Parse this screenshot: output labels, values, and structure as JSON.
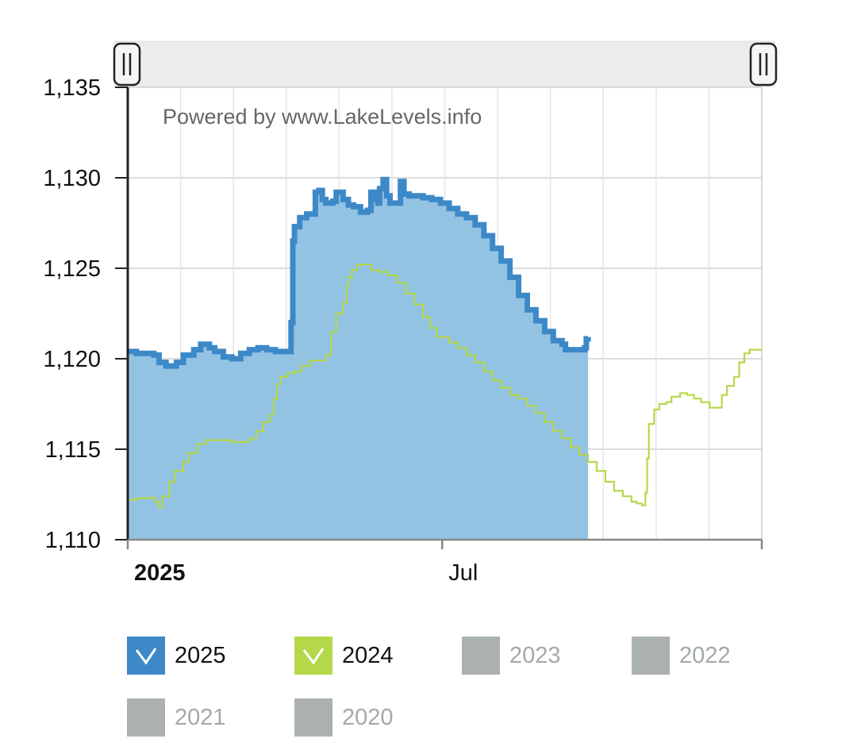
{
  "watermark": "Powered by www.LakeLevels.info",
  "colors": {
    "series_2025_line": "#3d89c8",
    "series_2025_fill": "#93c3e3",
    "series_2024_line": "#b5d84a",
    "inactive": "#abb1b0",
    "inactive_text": "#a3a9a9",
    "grid": "#dcdcdc",
    "axis": "#222222",
    "scrollbar_track": "#ececec"
  },
  "chart_data": {
    "type": "area",
    "x_domain_days": [
      0,
      365
    ],
    "x_ticks": [
      {
        "day": 0,
        "label": "2025",
        "bold": true
      },
      {
        "day": 181,
        "label": "Jul",
        "bold": false
      }
    ],
    "ylim": [
      1110,
      1135
    ],
    "y_ticks": [
      1110,
      1115,
      1120,
      1125,
      1130,
      1135
    ],
    "y_tick_labels": [
      "1,110",
      "1,115",
      "1,120",
      "1,125",
      "1,130",
      "1,135"
    ],
    "grid": true,
    "series": [
      {
        "name": "2025",
        "style": "area",
        "points": [
          [
            0,
            1120.4
          ],
          [
            5,
            1120.3
          ],
          [
            15,
            1120.2
          ],
          [
            18,
            1119.8
          ],
          [
            22,
            1119.6
          ],
          [
            28,
            1119.8
          ],
          [
            32,
            1120.2
          ],
          [
            38,
            1120.5
          ],
          [
            42,
            1120.8
          ],
          [
            47,
            1120.6
          ],
          [
            50,
            1120.4
          ],
          [
            55,
            1120.1
          ],
          [
            60,
            1120.0
          ],
          [
            65,
            1120.3
          ],
          [
            70,
            1120.5
          ],
          [
            75,
            1120.6
          ],
          [
            80,
            1120.5
          ],
          [
            85,
            1120.4
          ],
          [
            93,
            1120.4
          ],
          [
            94,
            1122.0
          ],
          [
            95,
            1126.5
          ],
          [
            96,
            1127.3
          ],
          [
            99,
            1127.8
          ],
          [
            103,
            1128.0
          ],
          [
            107,
            1128.0
          ],
          [
            108,
            1129.2
          ],
          [
            110,
            1129.3
          ],
          [
            112,
            1128.8
          ],
          [
            114,
            1128.6
          ],
          [
            118,
            1128.7
          ],
          [
            120,
            1129.2
          ],
          [
            124,
            1128.8
          ],
          [
            127,
            1128.5
          ],
          [
            130,
            1128.4
          ],
          [
            134,
            1128.1
          ],
          [
            138,
            1128.2
          ],
          [
            140,
            1129.2
          ],
          [
            142,
            1128.8
          ],
          [
            144,
            1128.6
          ],
          [
            145,
            1129.4
          ],
          [
            147,
            1129.9
          ],
          [
            149,
            1129.0
          ],
          [
            151,
            1128.6
          ],
          [
            156,
            1128.6
          ],
          [
            157,
            1129.8
          ],
          [
            159,
            1129.1
          ],
          [
            162,
            1129.0
          ],
          [
            166,
            1129.0
          ],
          [
            170,
            1128.9
          ],
          [
            175,
            1128.8
          ],
          [
            180,
            1128.6
          ],
          [
            185,
            1128.3
          ],
          [
            190,
            1128.0
          ],
          [
            195,
            1127.8
          ],
          [
            200,
            1127.4
          ],
          [
            205,
            1126.8
          ],
          [
            210,
            1126.1
          ],
          [
            215,
            1125.4
          ],
          [
            220,
            1124.5
          ],
          [
            225,
            1123.5
          ],
          [
            230,
            1122.7
          ],
          [
            235,
            1122.1
          ],
          [
            240,
            1121.5
          ],
          [
            245,
            1121.0
          ],
          [
            250,
            1120.8
          ],
          [
            252,
            1120.5
          ],
          [
            263,
            1120.6
          ],
          [
            264,
            1121.1
          ],
          [
            265,
            1121.2
          ]
        ]
      },
      {
        "name": "2024",
        "style": "line",
        "points": [
          [
            0,
            1112.2
          ],
          [
            5,
            1112.3
          ],
          [
            12,
            1112.3
          ],
          [
            16,
            1112.1
          ],
          [
            18,
            1111.8
          ],
          [
            20,
            1112.4
          ],
          [
            24,
            1113.2
          ],
          [
            27,
            1113.8
          ],
          [
            32,
            1114.3
          ],
          [
            35,
            1114.8
          ],
          [
            40,
            1115.3
          ],
          [
            45,
            1115.5
          ],
          [
            55,
            1115.5
          ],
          [
            60,
            1115.4
          ],
          [
            66,
            1115.4
          ],
          [
            70,
            1115.6
          ],
          [
            74,
            1116.0
          ],
          [
            78,
            1116.5
          ],
          [
            82,
            1116.9
          ],
          [
            84,
            1117.8
          ],
          [
            86,
            1118.6
          ],
          [
            88,
            1119.0
          ],
          [
            92,
            1119.2
          ],
          [
            96,
            1119.3
          ],
          [
            100,
            1119.6
          ],
          [
            105,
            1119.9
          ],
          [
            110,
            1119.9
          ],
          [
            114,
            1120.2
          ],
          [
            117,
            1121.5
          ],
          [
            120,
            1122.5
          ],
          [
            124,
            1123.1
          ],
          [
            126,
            1124.0
          ],
          [
            127,
            1124.5
          ],
          [
            129,
            1124.9
          ],
          [
            132,
            1125.2
          ],
          [
            136,
            1125.2
          ],
          [
            140,
            1124.9
          ],
          [
            145,
            1124.8
          ],
          [
            150,
            1124.6
          ],
          [
            155,
            1124.2
          ],
          [
            160,
            1123.6
          ],
          [
            165,
            1123.0
          ],
          [
            170,
            1122.3
          ],
          [
            174,
            1121.7
          ],
          [
            178,
            1121.2
          ],
          [
            185,
            1120.9
          ],
          [
            190,
            1120.6
          ],
          [
            195,
            1120.2
          ],
          [
            200,
            1119.8
          ],
          [
            205,
            1119.3
          ],
          [
            210,
            1118.8
          ],
          [
            215,
            1118.4
          ],
          [
            220,
            1118.0
          ],
          [
            225,
            1117.8
          ],
          [
            230,
            1117.4
          ],
          [
            235,
            1117.0
          ],
          [
            240,
            1116.5
          ],
          [
            245,
            1116.0
          ],
          [
            250,
            1115.6
          ],
          [
            255,
            1115.1
          ],
          [
            260,
            1114.7
          ],
          [
            265,
            1114.3
          ],
          [
            270,
            1113.8
          ],
          [
            275,
            1113.2
          ],
          [
            280,
            1112.7
          ],
          [
            285,
            1112.4
          ],
          [
            290,
            1112.1
          ],
          [
            293,
            1112.0
          ],
          [
            296,
            1111.9
          ],
          [
            298,
            1112.6
          ],
          [
            299,
            1114.5
          ],
          [
            300,
            1116.4
          ],
          [
            303,
            1117.2
          ],
          [
            306,
            1117.5
          ],
          [
            310,
            1117.6
          ],
          [
            313,
            1117.9
          ],
          [
            318,
            1118.1
          ],
          [
            322,
            1118.0
          ],
          [
            326,
            1117.8
          ],
          [
            330,
            1117.6
          ],
          [
            335,
            1117.3
          ],
          [
            340,
            1117.3
          ],
          [
            342,
            1118.0
          ],
          [
            345,
            1118.5
          ],
          [
            349,
            1119.0
          ],
          [
            352,
            1119.8
          ],
          [
            355,
            1120.3
          ],
          [
            358,
            1120.5
          ],
          [
            365,
            1120.5
          ]
        ]
      }
    ]
  },
  "legend": [
    {
      "label": "2025",
      "color": "#3d89c8",
      "checked": true
    },
    {
      "label": "2024",
      "color": "#b5d84a",
      "checked": true
    },
    {
      "label": "2023",
      "color": "#abb1b0",
      "checked": false
    },
    {
      "label": "2022",
      "color": "#abb1b0",
      "checked": false
    },
    {
      "label": "2021",
      "color": "#abb1b0",
      "checked": false
    },
    {
      "label": "2020",
      "color": "#abb1b0",
      "checked": false
    }
  ]
}
